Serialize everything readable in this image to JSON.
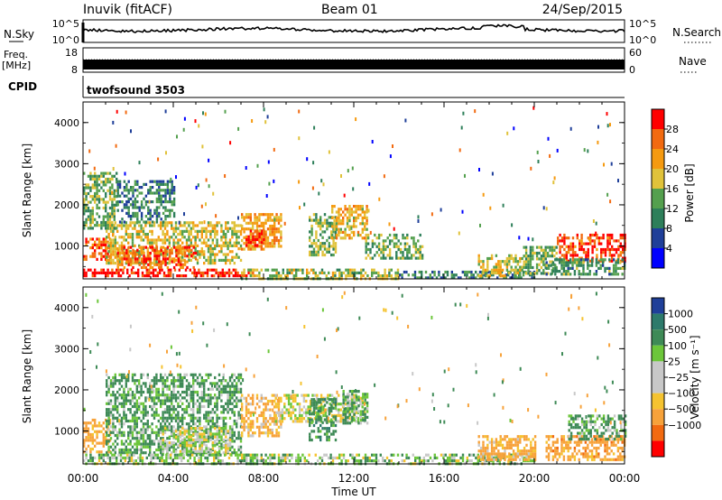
{
  "header": {
    "station": "Inuvik (fitACF)",
    "beam": "Beam 01",
    "date": "24/Sep/2015"
  },
  "top_panels": {
    "nsky_label": "N.Sky",
    "nsky_ticks": [
      "10^5",
      "10^0"
    ],
    "nsearch_label": "N.Search",
    "nsearch_ticks": [
      "10^5",
      "10^0"
    ],
    "freq_label": "Freq.",
    "freq_unit": "[MHz]",
    "freq_ticks": [
      "18",
      "8"
    ],
    "nave_label": "Nave",
    "nave_ticks": [
      "60",
      "0"
    ],
    "cpid_label": "CPID",
    "cpid_value": "twofsound 3503"
  },
  "colors": {
    "power_scale": [
      "#0000ff",
      "#1f3f99",
      "#2e7f5a",
      "#54a04e",
      "#e0c23a",
      "#f59a10",
      "#f26a10",
      "#ff0000"
    ],
    "velocity_scale": [
      "#ff0000",
      "#f26a10",
      "#f7a23a",
      "#f5c330",
      "#c8c8c8",
      "#c8c8c8",
      "#6cc63a",
      "#3e8a56",
      "#2d7a6b",
      "#1f3f99"
    ]
  },
  "chart_data": [
    {
      "type": "heatmap",
      "name": "power",
      "ylabel": "Slant Range [km]",
      "yticks": [
        "1000",
        "2000",
        "3000",
        "4000"
      ],
      "ylim": [
        200,
        4500
      ],
      "xticks": [
        "00:00",
        "04:00",
        "08:00",
        "12:00",
        "16:00",
        "20:00",
        "00:00"
      ],
      "xlim_hours": [
        0,
        24
      ],
      "colorbar": {
        "label": "Power [dB]",
        "ticks": [
          "4",
          "8",
          "12",
          "16",
          "20",
          "24",
          "28"
        ],
        "range": [
          0,
          32
        ]
      },
      "regions": [
        {
          "t0": 0.0,
          "t1": 7.5,
          "r0": 250,
          "r1": 450,
          "value": 30
        },
        {
          "t0": 0.0,
          "t1": 1.2,
          "r0": 700,
          "r1": 1200,
          "value": 26
        },
        {
          "t0": 1.0,
          "t1": 7.0,
          "r0": 600,
          "r1": 1600,
          "value": 18
        },
        {
          "t0": 1.5,
          "t1": 5.0,
          "r0": 450,
          "r1": 1000,
          "value": 26
        },
        {
          "t0": 0.0,
          "t1": 1.5,
          "r0": 1400,
          "r1": 2800,
          "value": 14
        },
        {
          "t0": 1.5,
          "t1": 4.0,
          "r0": 1600,
          "r1": 2600,
          "value": 10
        },
        {
          "t0": 7.0,
          "t1": 8.8,
          "r0": 900,
          "r1": 1800,
          "value": 22
        },
        {
          "t0": 7.2,
          "t1": 8.0,
          "r0": 1000,
          "r1": 1400,
          "value": 28
        },
        {
          "t0": 10.0,
          "t1": 11.2,
          "r0": 800,
          "r1": 1800,
          "value": 14
        },
        {
          "t0": 11.0,
          "t1": 12.6,
          "r0": 1200,
          "r1": 2000,
          "value": 20
        },
        {
          "t0": 12.5,
          "t1": 15.0,
          "r0": 700,
          "r1": 1300,
          "value": 14
        },
        {
          "t0": 7.0,
          "t1": 14.0,
          "r0": 220,
          "r1": 450,
          "value": 16
        },
        {
          "t0": 14.0,
          "t1": 20.0,
          "r0": 220,
          "r1": 400,
          "value": 10
        },
        {
          "t0": 17.5,
          "t1": 19.5,
          "r0": 300,
          "r1": 800,
          "value": 18
        },
        {
          "t0": 19.5,
          "t1": 21.0,
          "r0": 300,
          "r1": 1000,
          "value": 14
        },
        {
          "t0": 21.0,
          "t1": 24.0,
          "r0": 600,
          "r1": 1300,
          "value": 28
        },
        {
          "t0": 20.5,
          "t1": 24.0,
          "r0": 300,
          "r1": 700,
          "value": 12
        }
      ]
    },
    {
      "type": "heatmap",
      "name": "velocity",
      "ylabel": "Slant Range [km]",
      "yticks": [
        "1000",
        "2000",
        "3000",
        "4000"
      ],
      "ylim": [
        200,
        4500
      ],
      "xticks": [
        "00:00",
        "04:00",
        "08:00",
        "12:00",
        "16:00",
        "20:00",
        "00:00"
      ],
      "xlim_hours": [
        0,
        24
      ],
      "colorbar": {
        "label": "Velocity [m s⁻¹]",
        "ticks": [
          "1000",
          "500",
          "100",
          "25",
          "−25",
          "−100",
          "−500",
          "−1000"
        ]
      },
      "regions": [
        {
          "t0": 0.0,
          "t1": 1.2,
          "r0": 500,
          "r1": 1300,
          "value": -200
        },
        {
          "t0": 1.0,
          "t1": 7.0,
          "r0": 500,
          "r1": 2400,
          "value": 150
        },
        {
          "t0": 3.5,
          "t1": 6.5,
          "r0": 400,
          "r1": 1100,
          "value": 0
        },
        {
          "t0": 0.0,
          "t1": 7.5,
          "r0": 220,
          "r1": 450,
          "value": 60
        },
        {
          "t0": 7.0,
          "t1": 8.8,
          "r0": 900,
          "r1": 1900,
          "value": -150
        },
        {
          "t0": 8.5,
          "t1": 12.5,
          "r0": 1200,
          "r1": 1900,
          "value": 0
        },
        {
          "t0": 10.0,
          "t1": 11.2,
          "r0": 800,
          "r1": 1800,
          "value": 300
        },
        {
          "t0": 11.5,
          "t1": 12.6,
          "r0": 1200,
          "r1": 2000,
          "value": 120
        },
        {
          "t0": 7.0,
          "t1": 20.0,
          "r0": 220,
          "r1": 450,
          "value": 60
        },
        {
          "t0": 17.5,
          "t1": 20.0,
          "r0": 300,
          "r1": 900,
          "value": -150
        },
        {
          "t0": 20.5,
          "t1": 24.0,
          "r0": 300,
          "r1": 900,
          "value": -300
        },
        {
          "t0": 21.5,
          "t1": 24.0,
          "r0": 800,
          "r1": 1400,
          "value": 150
        }
      ]
    }
  ]
}
